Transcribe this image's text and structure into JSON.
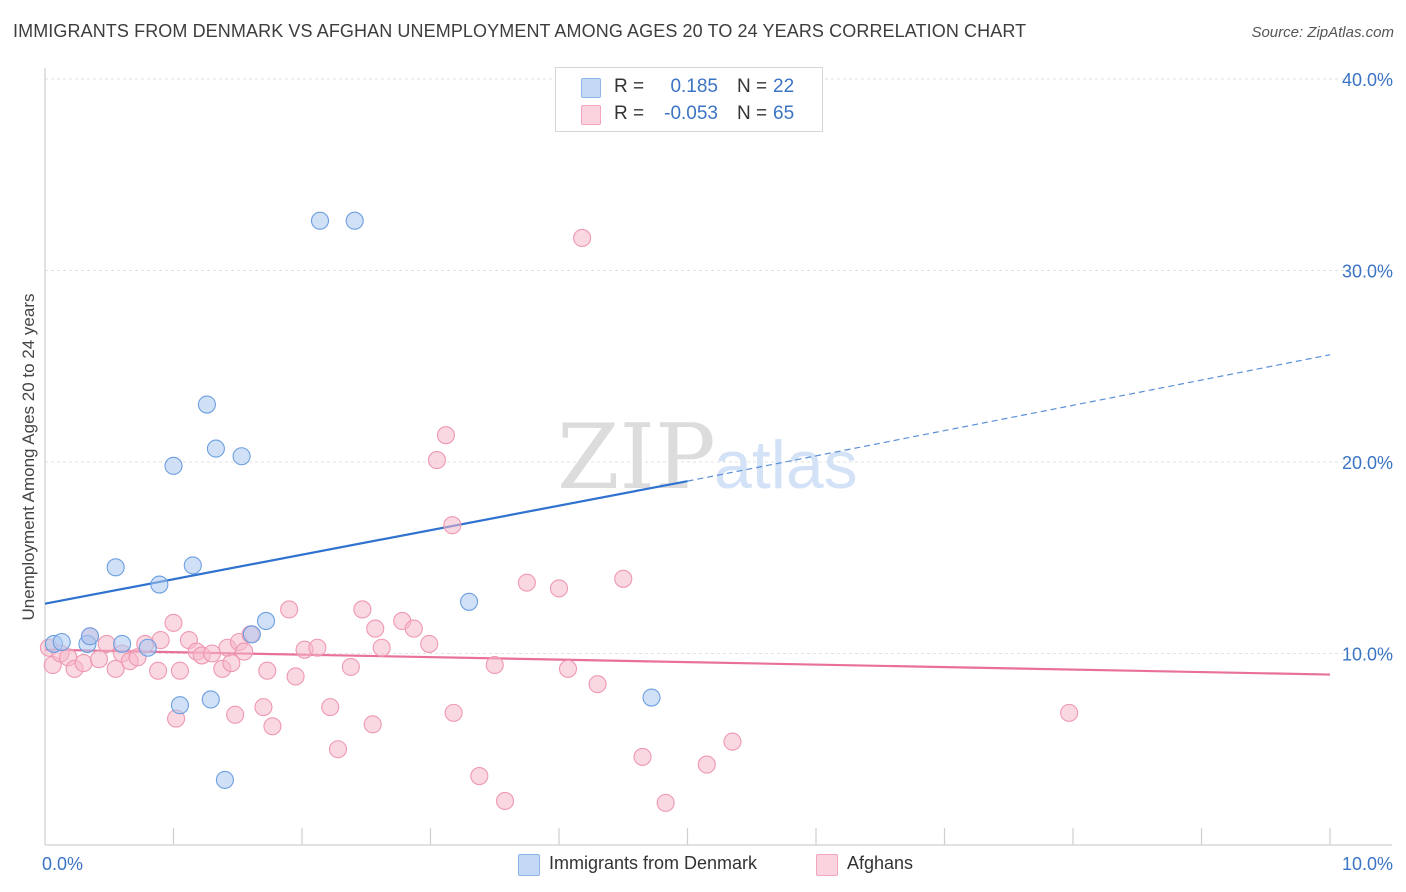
{
  "title": "IMMIGRANTS FROM DENMARK VS AFGHAN UNEMPLOYMENT AMONG AGES 20 TO 24 YEARS CORRELATION CHART",
  "source": "Source: ZipAtlas.com",
  "watermark": {
    "zip": "ZIP",
    "atlas": "atlas"
  },
  "legend_top": [
    {
      "r_label": "R =",
      "r_value": "0.185",
      "n_label": "N =",
      "n_value": "22",
      "color": "#a9c8f0"
    },
    {
      "r_label": "R =",
      "r_value": "-0.053",
      "n_label": "N =",
      "n_value": "65",
      "color": "#f6b8cb"
    }
  ],
  "legend_bottom": [
    {
      "label": "Immigrants from Denmark",
      "color": "#a9c8f0"
    },
    {
      "label": "Afghans",
      "color": "#f6b8cb"
    }
  ],
  "chart_data": {
    "type": "scatter",
    "title": "IMMIGRANTS FROM DENMARK VS AFGHAN UNEMPLOYMENT AMONG AGES 20 TO 24 YEARS CORRELATION CHART",
    "xlabel": "",
    "ylabel": "Unemployment Among Ages 20 to 24 years",
    "xlim": [
      0,
      10
    ],
    "ylim": [
      0,
      40
    ],
    "x_tick_labels": [
      "0.0%",
      "10.0%"
    ],
    "y_tick_labels": [
      "10.0%",
      "20.0%",
      "30.0%",
      "40.0%"
    ],
    "y_ticks": [
      10,
      20,
      30,
      40
    ],
    "x_minor_ticks": [
      1,
      2,
      3,
      4,
      5,
      6,
      7,
      8,
      9,
      10
    ],
    "grid": "horizontal dashed",
    "series": [
      {
        "name": "Immigrants from Denmark",
        "color": "#a9c8f0",
        "stroke": "#6d9fe0",
        "points": [
          [
            0.07,
            10.5
          ],
          [
            0.13,
            10.6
          ],
          [
            0.33,
            10.5
          ],
          [
            0.35,
            10.9
          ],
          [
            0.55,
            14.5
          ],
          [
            0.6,
            10.5
          ],
          [
            0.8,
            10.3
          ],
          [
            0.89,
            13.6
          ],
          [
            1.0,
            19.8
          ],
          [
            1.05,
            7.3
          ],
          [
            1.15,
            14.6
          ],
          [
            1.26,
            23.0
          ],
          [
            1.29,
            7.6
          ],
          [
            1.33,
            20.7
          ],
          [
            1.53,
            20.3
          ],
          [
            1.61,
            11.0
          ],
          [
            1.72,
            11.7
          ],
          [
            2.14,
            32.6
          ],
          [
            2.41,
            32.6
          ],
          [
            3.3,
            12.7
          ],
          [
            4.72,
            7.7
          ],
          [
            1.4,
            3.4
          ]
        ],
        "trend": {
          "x0": 0,
          "y0": 12.6,
          "x1": 5.0,
          "y1": 19.0,
          "dash_x1": 10.0,
          "dash_y1": 25.6
        }
      },
      {
        "name": "Afghans",
        "color": "#f6b8cb",
        "stroke": "#ee98b1",
        "points": [
          [
            0.03,
            10.3
          ],
          [
            0.06,
            9.4
          ],
          [
            0.12,
            10.0
          ],
          [
            0.18,
            9.8
          ],
          [
            0.23,
            9.2
          ],
          [
            0.3,
            9.5
          ],
          [
            0.35,
            10.9
          ],
          [
            0.42,
            9.7
          ],
          [
            0.48,
            10.5
          ],
          [
            0.55,
            9.2
          ],
          [
            0.6,
            10.0
          ],
          [
            0.66,
            9.6
          ],
          [
            0.72,
            9.8
          ],
          [
            0.78,
            10.5
          ],
          [
            0.9,
            10.7
          ],
          [
            1.0,
            11.6
          ],
          [
            1.05,
            9.1
          ],
          [
            1.12,
            10.7
          ],
          [
            1.18,
            10.1
          ],
          [
            1.22,
            9.9
          ],
          [
            1.3,
            10.0
          ],
          [
            1.38,
            9.2
          ],
          [
            1.42,
            10.3
          ],
          [
            1.45,
            9.5
          ],
          [
            1.51,
            10.6
          ],
          [
            1.55,
            10.1
          ],
          [
            1.6,
            11.0
          ],
          [
            1.7,
            7.2
          ],
          [
            1.73,
            9.1
          ],
          [
            1.77,
            6.2
          ],
          [
            1.9,
            12.3
          ],
          [
            1.95,
            8.8
          ],
          [
            2.02,
            10.2
          ],
          [
            2.12,
            10.3
          ],
          [
            2.22,
            7.2
          ],
          [
            2.28,
            5.0
          ],
          [
            2.38,
            9.3
          ],
          [
            2.47,
            12.3
          ],
          [
            2.57,
            11.3
          ],
          [
            2.62,
            10.3
          ],
          [
            2.78,
            11.7
          ],
          [
            2.87,
            11.3
          ],
          [
            2.99,
            10.5
          ],
          [
            3.05,
            20.1
          ],
          [
            3.12,
            21.4
          ],
          [
            3.17,
            16.7
          ],
          [
            3.18,
            6.9
          ],
          [
            3.38,
            3.6
          ],
          [
            3.5,
            9.4
          ],
          [
            3.58,
            2.3
          ],
          [
            3.75,
            13.7
          ],
          [
            4.0,
            13.4
          ],
          [
            4.07,
            9.2
          ],
          [
            4.18,
            31.7
          ],
          [
            4.3,
            8.4
          ],
          [
            4.5,
            13.9
          ],
          [
            4.65,
            4.6
          ],
          [
            4.83,
            2.2
          ],
          [
            5.15,
            4.2
          ],
          [
            5.35,
            5.4
          ],
          [
            1.48,
            6.8
          ],
          [
            2.55,
            6.3
          ],
          [
            0.88,
            9.1
          ],
          [
            7.97,
            6.9
          ],
          [
            1.02,
            6.6
          ]
        ],
        "trend": {
          "x0": 0,
          "y0": 10.2,
          "x1": 10.0,
          "y1": 8.9
        }
      }
    ]
  }
}
